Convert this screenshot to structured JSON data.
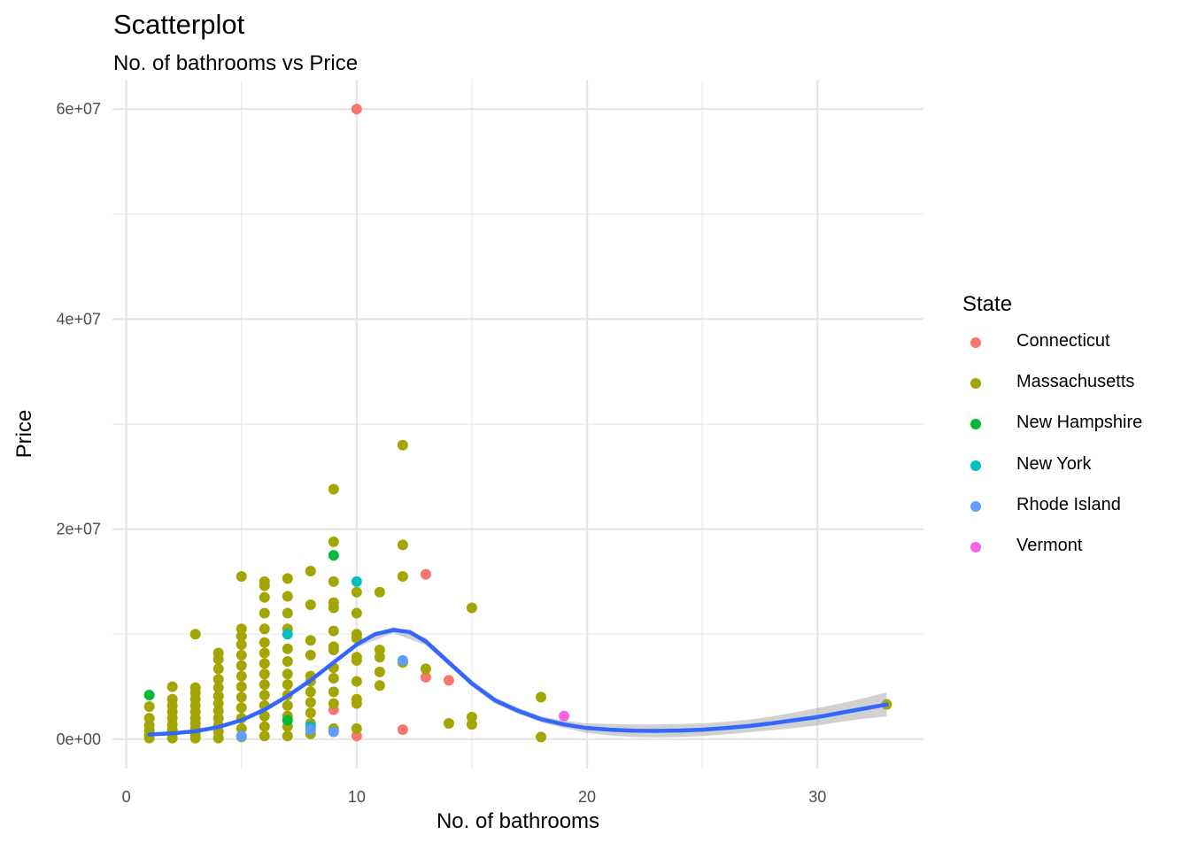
{
  "chart_data": {
    "type": "scatter",
    "title": "Scatterplot",
    "subtitle": "No. of bathrooms vs Price",
    "xlabel": "No. of bathrooms",
    "ylabel": "Price",
    "xlim": [
      -0.6,
      34.6
    ],
    "ylim": [
      -2800000,
      62800000
    ],
    "x_ticks": [
      0,
      10,
      20,
      30
    ],
    "x_tick_labels": [
      "0",
      "10",
      "20",
      "30"
    ],
    "y_ticks": [
      0,
      20000000,
      40000000,
      60000000
    ],
    "y_tick_labels": [
      "0e+00",
      "2e+07",
      "4e+07",
      "6e+07"
    ],
    "grid": true,
    "legend_title": "State",
    "legend_position": "right",
    "series": [
      {
        "name": "Connecticut",
        "color": "#F8766D",
        "points": [
          [
            10,
            60000000
          ],
          [
            13,
            15700000
          ],
          [
            13,
            5900000
          ],
          [
            14,
            5600000
          ],
          [
            12,
            900000
          ],
          [
            10,
            300000
          ],
          [
            9,
            2800000
          ]
        ]
      },
      {
        "name": "Massachusetts",
        "color": "#A3A500",
        "points": [
          [
            1,
            100000
          ],
          [
            1,
            400000
          ],
          [
            1,
            800000
          ],
          [
            1,
            1300000
          ],
          [
            1,
            2000000
          ],
          [
            1,
            3100000
          ],
          [
            2,
            100000
          ],
          [
            2,
            500000
          ],
          [
            2,
            900000
          ],
          [
            2,
            1400000
          ],
          [
            2,
            2000000
          ],
          [
            2,
            2600000
          ],
          [
            2,
            3200000
          ],
          [
            2,
            3800000
          ],
          [
            2,
            5000000
          ],
          [
            3,
            100000
          ],
          [
            3,
            500000
          ],
          [
            3,
            1000000
          ],
          [
            3,
            1500000
          ],
          [
            3,
            2000000
          ],
          [
            3,
            2600000
          ],
          [
            3,
            3200000
          ],
          [
            3,
            3800000
          ],
          [
            3,
            4400000
          ],
          [
            3,
            4900000
          ],
          [
            3,
            10000000
          ],
          [
            4,
            100000
          ],
          [
            4,
            700000
          ],
          [
            4,
            1300000
          ],
          [
            4,
            2000000
          ],
          [
            4,
            2700000
          ],
          [
            4,
            3400000
          ],
          [
            4,
            4100000
          ],
          [
            4,
            4900000
          ],
          [
            4,
            5700000
          ],
          [
            4,
            6700000
          ],
          [
            4,
            7600000
          ],
          [
            4,
            8200000
          ],
          [
            5,
            200000
          ],
          [
            5,
            1000000
          ],
          [
            5,
            2000000
          ],
          [
            5,
            3000000
          ],
          [
            5,
            4000000
          ],
          [
            5,
            5000000
          ],
          [
            5,
            6000000
          ],
          [
            5,
            7000000
          ],
          [
            5,
            8000000
          ],
          [
            5,
            9000000
          ],
          [
            5,
            9800000
          ],
          [
            5,
            10500000
          ],
          [
            5,
            15500000
          ],
          [
            6,
            300000
          ],
          [
            6,
            1200000
          ],
          [
            6,
            2200000
          ],
          [
            6,
            3200000
          ],
          [
            6,
            4200000
          ],
          [
            6,
            5200000
          ],
          [
            6,
            6200000
          ],
          [
            6,
            7200000
          ],
          [
            6,
            8200000
          ],
          [
            6,
            9200000
          ],
          [
            6,
            10500000
          ],
          [
            6,
            12000000
          ],
          [
            6,
            13500000
          ],
          [
            6,
            14600000
          ],
          [
            6,
            15000000
          ],
          [
            7,
            300000
          ],
          [
            7,
            1200000
          ],
          [
            7,
            2200000
          ],
          [
            7,
            3200000
          ],
          [
            7,
            4200000
          ],
          [
            7,
            5200000
          ],
          [
            7,
            6200000
          ],
          [
            7,
            7400000
          ],
          [
            7,
            8600000
          ],
          [
            7,
            10500000
          ],
          [
            7,
            12000000
          ],
          [
            7,
            13600000
          ],
          [
            7,
            15300000
          ],
          [
            8,
            500000
          ],
          [
            8,
            1500000
          ],
          [
            8,
            2500000
          ],
          [
            8,
            3500000
          ],
          [
            8,
            4500000
          ],
          [
            8,
            5500000
          ],
          [
            8,
            6000000
          ],
          [
            8,
            8000000
          ],
          [
            8,
            9400000
          ],
          [
            8,
            12800000
          ],
          [
            8,
            16000000
          ],
          [
            9,
            1000000
          ],
          [
            9,
            3400000
          ],
          [
            9,
            4500000
          ],
          [
            9,
            5800000
          ],
          [
            9,
            6800000
          ],
          [
            9,
            8500000
          ],
          [
            9,
            8800000
          ],
          [
            9,
            10300000
          ],
          [
            9,
            12500000
          ],
          [
            9,
            13000000
          ],
          [
            9,
            15000000
          ],
          [
            9,
            18800000
          ],
          [
            9,
            23800000
          ],
          [
            10,
            1000000
          ],
          [
            10,
            3400000
          ],
          [
            10,
            3800000
          ],
          [
            10,
            5500000
          ],
          [
            10,
            7500000
          ],
          [
            10,
            7800000
          ],
          [
            10,
            9600000
          ],
          [
            10,
            10000000
          ],
          [
            10,
            12000000
          ],
          [
            10,
            14000000
          ],
          [
            11,
            5100000
          ],
          [
            11,
            6400000
          ],
          [
            11,
            7800000
          ],
          [
            11,
            8500000
          ],
          [
            11,
            14000000
          ],
          [
            12,
            7300000
          ],
          [
            12,
            15500000
          ],
          [
            12,
            18500000
          ],
          [
            12,
            28000000
          ],
          [
            13,
            6700000
          ],
          [
            14,
            1500000
          ],
          [
            15,
            1400000
          ],
          [
            15,
            2100000
          ],
          [
            15,
            12500000
          ],
          [
            18,
            200000
          ],
          [
            18,
            4000000
          ],
          [
            33,
            3300000
          ]
        ]
      },
      {
        "name": "New Hampshire",
        "color": "#00BA38",
        "points": [
          [
            1,
            4200000
          ],
          [
            9,
            17500000
          ],
          [
            7,
            1800000
          ]
        ]
      },
      {
        "name": "New York",
        "color": "#00BFC4",
        "points": [
          [
            7,
            10000000
          ],
          [
            10,
            15000000
          ],
          [
            8,
            1200000
          ]
        ]
      },
      {
        "name": "Rhode Island",
        "color": "#619CFF",
        "points": [
          [
            9,
            700000
          ],
          [
            12,
            7500000
          ],
          [
            5,
            300000
          ],
          [
            8,
            900000
          ]
        ]
      },
      {
        "name": "Vermont",
        "color": "#F564E3",
        "points": [
          [
            19,
            2200000
          ]
        ]
      }
    ],
    "smooth": {
      "color": "#3366FF",
      "band_color": "#999999",
      "line": [
        [
          1,
          450000
        ],
        [
          2,
          550000
        ],
        [
          3,
          750000
        ],
        [
          4,
          1150000
        ],
        [
          5,
          1800000
        ],
        [
          6,
          2800000
        ],
        [
          7,
          4100000
        ],
        [
          8,
          5600000
        ],
        [
          9,
          7300000
        ],
        [
          10,
          9000000
        ],
        [
          10.8,
          10000000
        ],
        [
          11.6,
          10400000
        ],
        [
          12.3,
          10200000
        ],
        [
          13,
          9300000
        ],
        [
          14,
          7300000
        ],
        [
          15,
          5300000
        ],
        [
          16,
          3700000
        ],
        [
          17,
          2700000
        ],
        [
          18,
          1900000
        ],
        [
          19,
          1400000
        ],
        [
          20,
          1050000
        ],
        [
          21,
          900000
        ],
        [
          22,
          800000
        ],
        [
          23,
          780000
        ],
        [
          24,
          820000
        ],
        [
          25,
          900000
        ],
        [
          26,
          1050000
        ],
        [
          27,
          1250000
        ],
        [
          28,
          1500000
        ],
        [
          29,
          1800000
        ],
        [
          30,
          2100000
        ],
        [
          31,
          2500000
        ],
        [
          32,
          2900000
        ],
        [
          33,
          3300000
        ]
      ],
      "band_lower": [
        [
          1,
          300000
        ],
        [
          3,
          650000
        ],
        [
          5,
          1650000
        ],
        [
          7,
          3950000
        ],
        [
          9,
          7100000
        ],
        [
          10,
          8750000
        ],
        [
          11.6,
          10100000
        ],
        [
          13,
          8950000
        ],
        [
          14,
          7000000
        ],
        [
          15,
          5000000
        ],
        [
          16,
          3400000
        ],
        [
          17,
          2400000
        ],
        [
          18,
          1600000
        ],
        [
          19,
          1050000
        ],
        [
          20,
          600000
        ],
        [
          21,
          350000
        ],
        [
          22,
          200000
        ],
        [
          23,
          150000
        ],
        [
          24,
          200000
        ],
        [
          25,
          300000
        ],
        [
          26,
          450000
        ],
        [
          27,
          650000
        ],
        [
          28,
          850000
        ],
        [
          29,
          1050000
        ],
        [
          30,
          1300000
        ],
        [
          31,
          1650000
        ],
        [
          32,
          1950000
        ],
        [
          33,
          2150000
        ]
      ],
      "band_upper": [
        [
          1,
          600000
        ],
        [
          3,
          850000
        ],
        [
          5,
          1950000
        ],
        [
          7,
          4250000
        ],
        [
          9,
          7500000
        ],
        [
          10,
          9250000
        ],
        [
          11.6,
          10700000
        ],
        [
          13,
          9650000
        ],
        [
          14,
          7600000
        ],
        [
          15,
          5600000
        ],
        [
          16,
          4000000
        ],
        [
          17,
          3000000
        ],
        [
          18,
          2200000
        ],
        [
          19,
          1750000
        ],
        [
          20,
          1500000
        ],
        [
          21,
          1450000
        ],
        [
          22,
          1400000
        ],
        [
          23,
          1410000
        ],
        [
          24,
          1440000
        ],
        [
          25,
          1500000
        ],
        [
          26,
          1650000
        ],
        [
          27,
          1850000
        ],
        [
          28,
          2150000
        ],
        [
          29,
          2550000
        ],
        [
          30,
          2950000
        ],
        [
          31,
          3400000
        ],
        [
          32,
          3900000
        ],
        [
          33,
          4450000
        ]
      ]
    }
  }
}
